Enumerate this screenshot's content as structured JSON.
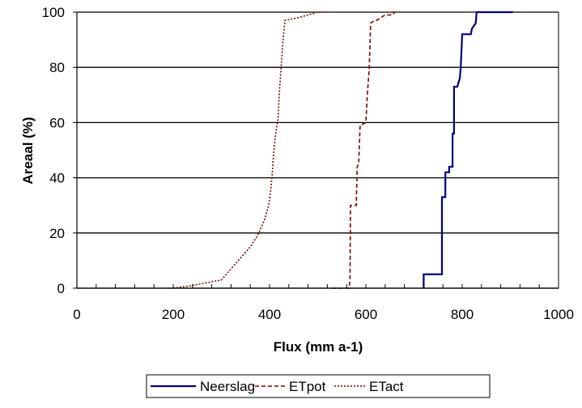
{
  "chart_data": {
    "type": "line",
    "title": "",
    "xlabel": "Flux (mm a-1)",
    "ylabel": "Areaal (%)",
    "xlim": [
      0,
      1000
    ],
    "ylim": [
      0,
      100
    ],
    "x_ticks": [
      "0",
      "200",
      "400",
      "600",
      "800",
      "1000"
    ],
    "y_ticks": [
      "0",
      "20",
      "40",
      "60",
      "80",
      "100"
    ],
    "grid": "horizontal major gridlines",
    "legend_position": "bottom",
    "series": [
      {
        "name": "Neerslag",
        "color": "#000080",
        "style": "solid",
        "points": [
          [
            720,
            0
          ],
          [
            720,
            5
          ],
          [
            758,
            5
          ],
          [
            758,
            33
          ],
          [
            765,
            33
          ],
          [
            765,
            42
          ],
          [
            773,
            42
          ],
          [
            773,
            44
          ],
          [
            780,
            44
          ],
          [
            780,
            56
          ],
          [
            783,
            56
          ],
          [
            783,
            73
          ],
          [
            790,
            73
          ],
          [
            795,
            76
          ],
          [
            797,
            80
          ],
          [
            800,
            92
          ],
          [
            818,
            92
          ],
          [
            820,
            94
          ],
          [
            828,
            96
          ],
          [
            830,
            100
          ],
          [
            905,
            100
          ]
        ]
      },
      {
        "name": "ETpot",
        "color": "#800000",
        "style": "dashed",
        "points": [
          [
            530,
            0
          ],
          [
            565,
            0
          ],
          [
            567,
            3
          ],
          [
            568,
            30
          ],
          [
            580,
            30
          ],
          [
            582,
            44
          ],
          [
            585,
            45
          ],
          [
            588,
            59
          ],
          [
            600,
            60
          ],
          [
            603,
            70
          ],
          [
            607,
            80
          ],
          [
            610,
            96
          ],
          [
            618,
            97
          ],
          [
            622,
            97
          ],
          [
            640,
            99
          ],
          [
            655,
            99
          ],
          [
            660,
            100
          ]
        ]
      },
      {
        "name": "ETact",
        "color": "#800000",
        "style": "dotted",
        "points": [
          [
            200,
            0
          ],
          [
            240,
            1
          ],
          [
            270,
            2
          ],
          [
            300,
            3
          ],
          [
            320,
            7
          ],
          [
            345,
            12
          ],
          [
            360,
            15
          ],
          [
            375,
            19
          ],
          [
            390,
            25
          ],
          [
            398,
            30
          ],
          [
            402,
            35
          ],
          [
            405,
            40
          ],
          [
            408,
            48
          ],
          [
            412,
            55
          ],
          [
            418,
            62
          ],
          [
            420,
            70
          ],
          [
            424,
            80
          ],
          [
            428,
            90
          ],
          [
            432,
            97
          ],
          [
            460,
            98
          ],
          [
            480,
            99
          ],
          [
            500,
            100
          ],
          [
            520,
            100
          ]
        ]
      }
    ]
  }
}
